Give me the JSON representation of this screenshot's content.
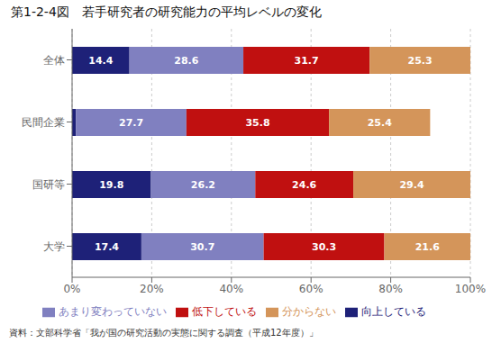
{
  "chart_data": {
    "type": "bar",
    "title": "第1-2-4図　若手研究者の研究能力の平均レベルの変化",
    "orientation": "horizontal",
    "stacked": true,
    "categories": [
      "全体",
      "民間企業",
      "国研等",
      "大学"
    ],
    "series": [
      {
        "name": "向上している",
        "color": "#1e2178",
        "values": [
          14.4,
          1.0,
          19.8,
          17.4
        ],
        "value_labels": [
          "14.4",
          null,
          "19.8",
          "17.4"
        ]
      },
      {
        "name": "あまり変わっていない",
        "color": "#8080c0",
        "values": [
          28.6,
          27.7,
          26.2,
          30.7
        ]
      },
      {
        "name": "低下している",
        "color": "#c01010",
        "values": [
          31.7,
          35.8,
          24.6,
          30.3
        ]
      },
      {
        "name": "分からない",
        "color": "#d4955a",
        "values": [
          25.3,
          25.4,
          29.4,
          21.6
        ]
      }
    ],
    "xlim": [
      0,
      100
    ],
    "xticks": [
      {
        "value": 0,
        "label": "0%"
      },
      {
        "value": 20,
        "label": "20%"
      },
      {
        "value": 40,
        "label": "40%"
      },
      {
        "value": 60,
        "label": "60%"
      },
      {
        "value": 80,
        "label": "80%"
      },
      {
        "value": 100,
        "label": "100%"
      }
    ],
    "grid": true,
    "data_labels": true,
    "legend": "bottom",
    "footnote": "資料：文部科学省「我が国の研究活動の実態に関する調査（平成12年度）」"
  }
}
